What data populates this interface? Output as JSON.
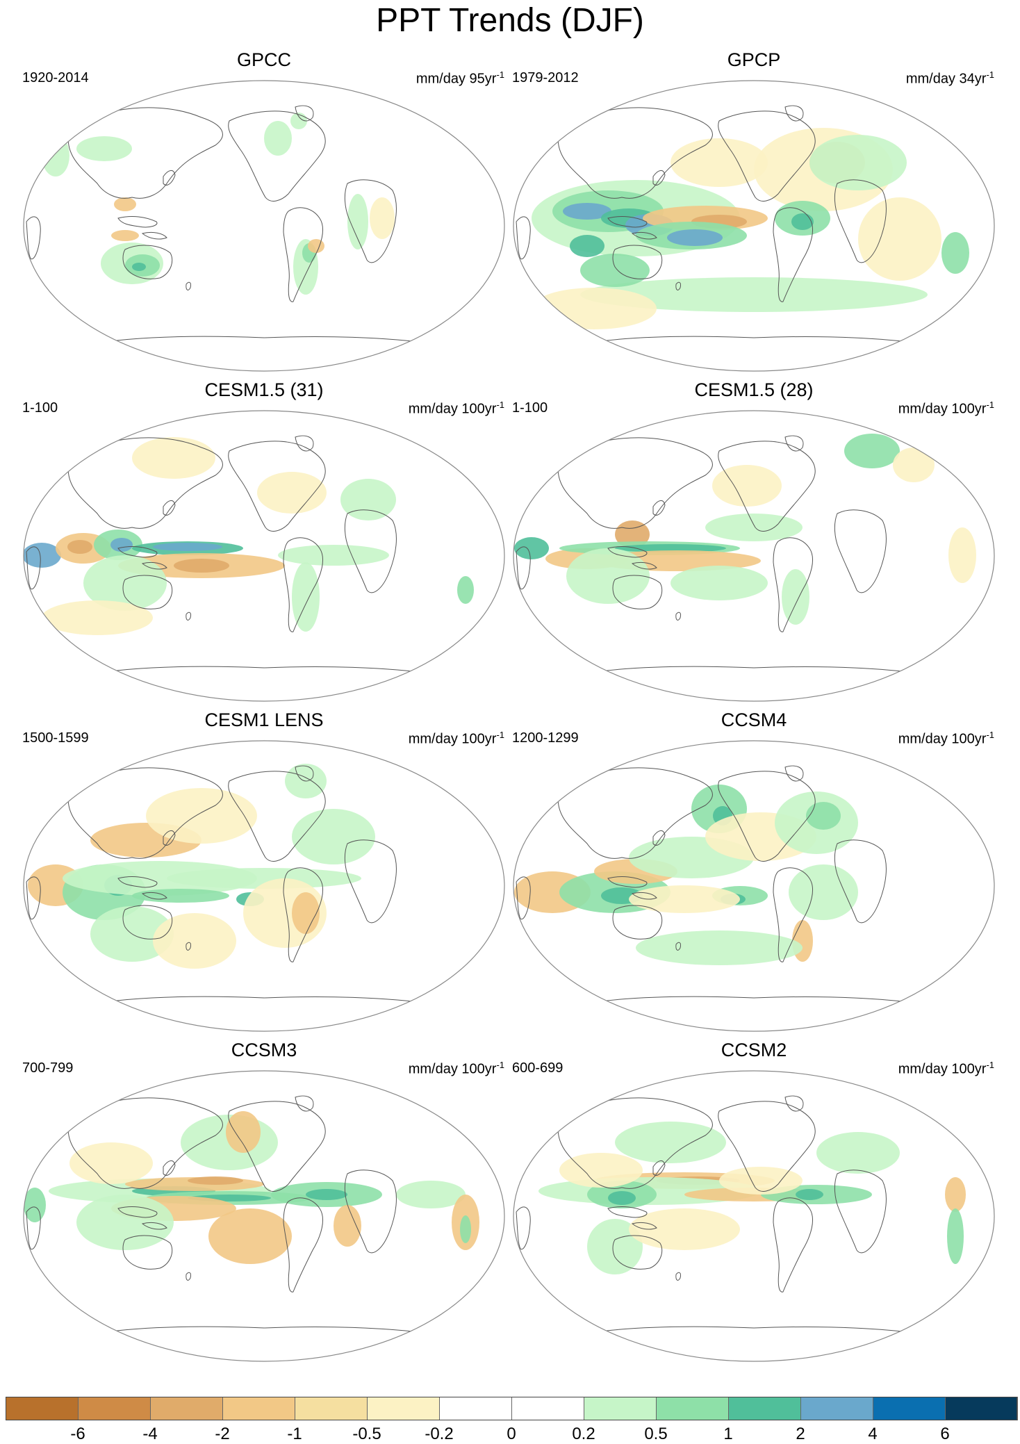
{
  "figure": {
    "title": "PPT Trends (DJF)"
  },
  "panels": [
    {
      "title": "GPCC",
      "period": "1920-2014",
      "units": "mm/day 95yr",
      "units_exp": "-1"
    },
    {
      "title": "GPCP",
      "period": "1979-2012",
      "units": "mm/day 34yr",
      "units_exp": "-1"
    },
    {
      "title": "CESM1.5 (31)",
      "period": "1-100",
      "units": "mm/day 100yr",
      "units_exp": "-1"
    },
    {
      "title": "CESM1.5 (28)",
      "period": "1-100",
      "units": "mm/day 100yr",
      "units_exp": "-1"
    },
    {
      "title": "CESM1 LENS",
      "period": "1500-1599",
      "units": "mm/day 100yr",
      "units_exp": "-1"
    },
    {
      "title": "CCSM4",
      "period": "1200-1299",
      "units": "mm/day 100yr",
      "units_exp": "-1"
    },
    {
      "title": "CCSM3",
      "period": "700-799",
      "units": "mm/day 100yr",
      "units_exp": "-1"
    },
    {
      "title": "CCSM2",
      "period": "600-699",
      "units": "mm/day 100yr",
      "units_exp": "-1"
    }
  ],
  "colorbar": {
    "labels": [
      "-6",
      "-4",
      "-2",
      "-1",
      "-0.5",
      "-0.2",
      "0",
      "0.2",
      "0.5",
      "1",
      "2",
      "4",
      "6"
    ],
    "colors": [
      "#b8712c",
      "#cf8b46",
      "#e0ab6a",
      "#f2c886",
      "#f5dfa0",
      "#fcf2c4",
      "#ffffff",
      "#ffffff",
      "#c6f5c8",
      "#8ee0a8",
      "#50bf9a",
      "#6aa8cc",
      "#0a6fb0",
      "#063a5c"
    ]
  },
  "palette": {
    "dry3": "#cf8b46",
    "dry2": "#e0ab6a",
    "dry1": "#f2c886",
    "dry0": "#fcf2c4",
    "wet0": "#c6f5c8",
    "wet1": "#8ee0a8",
    "wet2": "#50bf9a",
    "wet3": "#6aa8cc",
    "coast": "#555555",
    "frame": "#888888"
  }
}
